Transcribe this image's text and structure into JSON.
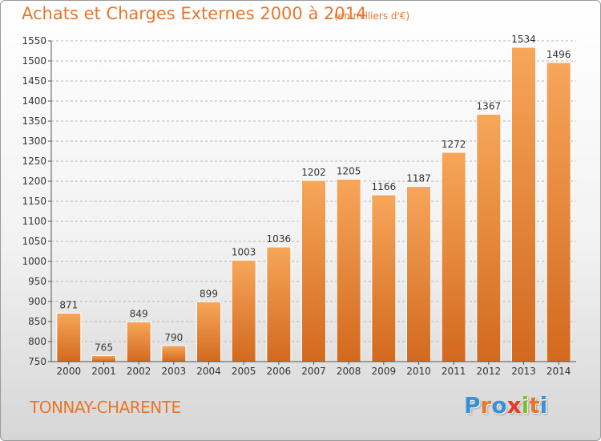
{
  "chart_data": {
    "type": "bar",
    "title": "Achats et Charges Externes 2000 à 2014",
    "subtitle": "(en milliers d'€)",
    "categories": [
      "2000",
      "2001",
      "2002",
      "2003",
      "2004",
      "2005",
      "2006",
      "2007",
      "2008",
      "2009",
      "2010",
      "2011",
      "2012",
      "2013",
      "2014"
    ],
    "values": [
      871,
      765,
      849,
      790,
      899,
      1003,
      1036,
      1202,
      1205,
      1166,
      1187,
      1272,
      1367,
      1534,
      1496
    ],
    "ylim": [
      750,
      1550
    ],
    "yticks": [
      750,
      800,
      850,
      900,
      950,
      1000,
      1050,
      1100,
      1150,
      1200,
      1250,
      1300,
      1350,
      1400,
      1450,
      1500,
      1550
    ],
    "grid": "horizontal dashed",
    "bar_color": "#f0913a"
  },
  "city": "TONNAY-CHARENTE",
  "logo": {
    "letters": [
      "P",
      "r",
      "o",
      "x",
      "i",
      "t",
      "i"
    ],
    "colors": [
      "#3a8fd6",
      "#e8762a",
      "#3a8fd6",
      "#e83a2a",
      "#7bbf2a",
      "#e8762a",
      "#3a8fd6"
    ]
  }
}
